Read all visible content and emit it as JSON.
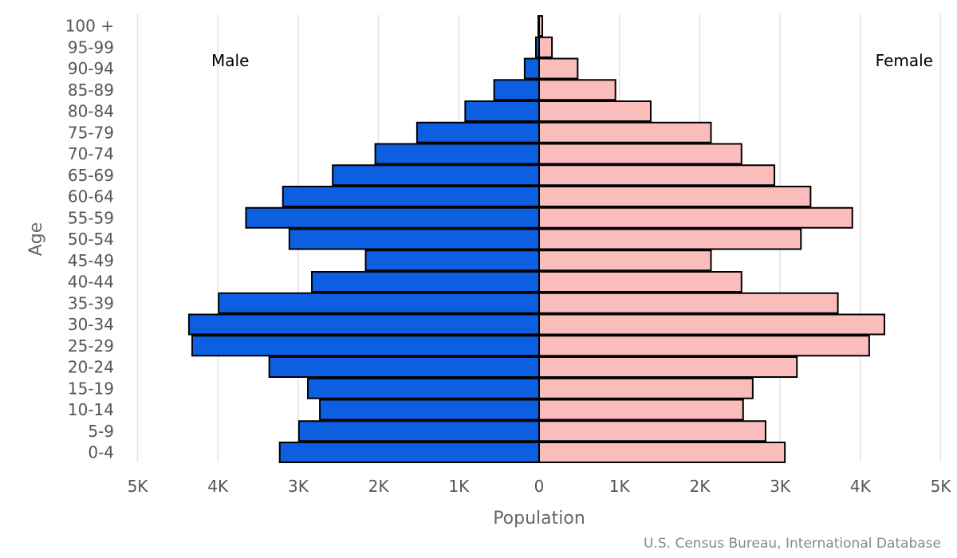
{
  "chart_data": {
    "type": "bar",
    "subtype": "population-pyramid",
    "categories": [
      "0-4",
      "5-9",
      "10-14",
      "15-19",
      "20-24",
      "25-29",
      "30-34",
      "35-39",
      "40-44",
      "45-49",
      "50-54",
      "55-59",
      "60-64",
      "65-69",
      "70-74",
      "75-79",
      "80-84",
      "85-89",
      "90-94",
      "95-99",
      "100 +"
    ],
    "series": [
      {
        "name": "Male",
        "color": "#0b5fe0",
        "values": [
          3230,
          2990,
          2730,
          2880,
          3360,
          4320,
          4360,
          3990,
          2830,
          2160,
          3110,
          3650,
          3190,
          2570,
          2040,
          1520,
          920,
          560,
          180,
          40,
          10
        ]
      },
      {
        "name": "Female",
        "color": "#fbbcbc",
        "values": [
          3060,
          2820,
          2540,
          2660,
          3210,
          4110,
          4300,
          3720,
          2520,
          2140,
          3260,
          3900,
          3380,
          2930,
          2520,
          2140,
          1390,
          950,
          480,
          160,
          40
        ]
      }
    ],
    "xlabel": "Population",
    "ylabel": "Age",
    "xlim": [
      -5000,
      5000
    ],
    "x_ticks": [
      -5000,
      -4000,
      -3000,
      -2000,
      -1000,
      0,
      1000,
      2000,
      3000,
      4000,
      5000
    ],
    "x_tick_labels": [
      "5K",
      "4K",
      "3K",
      "2K",
      "1K",
      "0",
      "1K",
      "2K",
      "3K",
      "4K",
      "5K"
    ],
    "left_label": "Male",
    "right_label": "Female",
    "grid": true
  },
  "source": "U.S. Census Bureau, International Database"
}
